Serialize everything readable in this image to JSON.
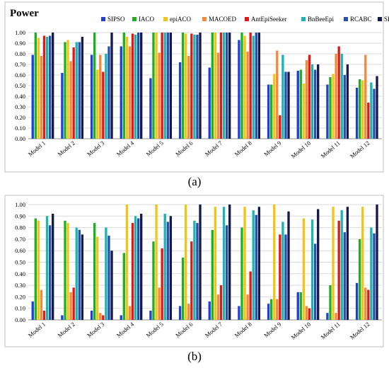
{
  "panels": [
    {
      "label": "(a)",
      "chart_data": {
        "type": "bar",
        "title": "Power",
        "ylim": [
          0,
          1
        ],
        "yticks": [
          "0.00",
          "0.10",
          "0.20",
          "0.30",
          "0.40",
          "0.50",
          "0.60",
          "0.70",
          "0.80",
          "0.90",
          "1.00"
        ],
        "grid": true,
        "legend": "top",
        "categories": [
          "Model 1",
          "Model 2",
          "Model 3",
          "Model 4",
          "Model 5",
          "Model 6",
          "Model 7",
          "Model 8",
          "Model 9",
          "Model 10",
          "Model 11",
          "Model 12"
        ],
        "series": [
          {
            "name": "SIPSO",
            "color": "#1f3fd6",
            "values": [
              0.79,
              0.62,
              0.79,
              0.87,
              0.57,
              0.72,
              0.67,
              0.93,
              0.51,
              0.64,
              0.51,
              0.48
            ]
          },
          {
            "name": "IACO",
            "color": "#1fb01f",
            "values": [
              1.0,
              0.91,
              1.0,
              1.0,
              1.0,
              1.0,
              1.0,
              1.0,
              0.51,
              0.65,
              0.58,
              0.56
            ]
          },
          {
            "name": "epiACO",
            "color": "#f0c419",
            "values": [
              0.95,
              0.93,
              0.65,
              0.96,
              1.0,
              0.99,
              1.0,
              0.97,
              0.61,
              0.52,
              0.61,
              0.55
            ]
          },
          {
            "name": "MACOED",
            "color": "#f08a3c",
            "values": [
              0.78,
              0.73,
              0.79,
              0.87,
              0.81,
              0.78,
              0.81,
              0.82,
              0.83,
              0.74,
              0.8,
              0.79
            ]
          },
          {
            "name": "AntEpiSeeker",
            "color": "#e01818",
            "values": [
              0.97,
              0.86,
              0.63,
              0.99,
              1.0,
              0.99,
              1.0,
              1.0,
              0.22,
              0.79,
              0.87,
              0.34
            ]
          },
          {
            "name": "BnBeeEpi",
            "color": "#1bb3b3",
            "values": [
              0.96,
              0.91,
              0.8,
              0.98,
              1.0,
              0.98,
              1.0,
              0.97,
              0.79,
              0.7,
              0.8,
              0.53
            ]
          },
          {
            "name": "RCABC",
            "color": "#2a4fa8",
            "values": [
              0.97,
              0.91,
              0.87,
              1.0,
              1.0,
              0.98,
              1.0,
              1.0,
              0.63,
              0.65,
              0.6,
              0.47
            ]
          },
          {
            "name": "SFMOABC",
            "color": "#141a4a",
            "values": [
              1.0,
              0.96,
              1.0,
              1.0,
              1.0,
              1.0,
              1.0,
              1.0,
              0.63,
              0.7,
              0.7,
              0.59
            ]
          }
        ]
      }
    },
    {
      "label": "(b)",
      "chart_data": {
        "type": "bar",
        "ylim": [
          0,
          1
        ],
        "yticks": [
          "0.00",
          "0.10",
          "0.20",
          "0.30",
          "0.40",
          "0.50",
          "0.60",
          "0.70",
          "0.80",
          "0.90",
          "1.00"
        ],
        "grid": true,
        "categories": [
          "Model 1",
          "Model 2",
          "Model 3",
          "Model 4",
          "Model 5",
          "Model 6",
          "Model 7",
          "Model 8",
          "Model 9",
          "Model 10",
          "Model 11",
          "Model 12"
        ],
        "series": [
          {
            "name": "SIPSO",
            "color": "#1f3fd6",
            "values": [
              0.16,
              0.04,
              0.08,
              0.04,
              0.08,
              0.12,
              0.16,
              0.12,
              0.14,
              0.24,
              0.06,
              0.32
            ]
          },
          {
            "name": "IACO",
            "color": "#1fb01f",
            "values": [
              0.88,
              0.86,
              0.84,
              0.58,
              0.68,
              0.54,
              0.78,
              0.8,
              0.18,
              0.24,
              0.3,
              0.7
            ]
          },
          {
            "name": "epiACO",
            "color": "#f0c419",
            "values": [
              0.86,
              0.84,
              0.72,
              1.0,
              1.0,
              1.0,
              0.98,
              0.98,
              1.0,
              0.88,
              0.98,
              0.98
            ]
          },
          {
            "name": "MACOED",
            "color": "#f08a3c",
            "values": [
              0.26,
              0.24,
              0.06,
              0.12,
              0.28,
              0.14,
              0.22,
              0.22,
              0.18,
              0.12,
              0.06,
              0.28
            ]
          },
          {
            "name": "AntEpiSeeker",
            "color": "#e01818",
            "values": [
              0.08,
              0.28,
              0.04,
              0.84,
              0.62,
              0.68,
              0.3,
              0.42,
              0.74,
              0.1,
              0.86,
              0.26
            ]
          },
          {
            "name": "BnBeeEpi",
            "color": "#1bb3b3",
            "values": [
              0.9,
              0.8,
              0.8,
              0.9,
              0.92,
              0.86,
              0.98,
              0.95,
              0.85,
              0.87,
              0.95,
              0.8
            ]
          },
          {
            "name": "RCABC",
            "color": "#2a4fa8",
            "values": [
              0.82,
              0.78,
              0.73,
              0.88,
              0.85,
              0.84,
              0.82,
              0.91,
              0.74,
              0.66,
              0.76,
              0.75
            ]
          },
          {
            "name": "SFMOABC",
            "color": "#141a4a",
            "values": [
              0.92,
              0.74,
              0.6,
              0.92,
              0.9,
              1.0,
              1.0,
              0.98,
              0.94,
              0.96,
              0.98,
              1.0
            ]
          }
        ]
      }
    }
  ]
}
